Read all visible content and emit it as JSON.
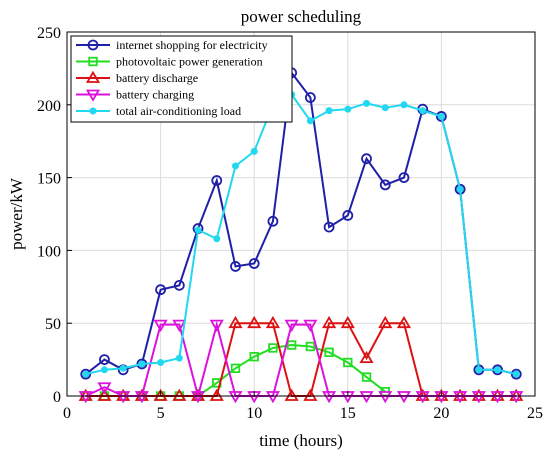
{
  "chart_data": {
    "type": "line",
    "title": "power scheduling",
    "xlabel": "time (hours)",
    "ylabel": "power/kW",
    "xlim": [
      0,
      25
    ],
    "ylim": [
      0,
      250
    ],
    "xticks": [
      0,
      5,
      10,
      15,
      20,
      25
    ],
    "yticks": [
      0,
      50,
      100,
      150,
      200,
      250
    ],
    "grid": true,
    "legend_position": "top-left",
    "x": [
      1,
      2,
      3,
      4,
      5,
      6,
      7,
      8,
      9,
      10,
      11,
      12,
      13,
      14,
      15,
      16,
      17,
      18,
      19,
      20,
      21,
      22,
      23,
      24
    ],
    "series": [
      {
        "name": "internet shopping for electricity",
        "color": "#1f1fa8",
        "marker": "circle",
        "values": [
          15,
          25,
          18,
          22,
          73,
          76,
          115,
          148,
          89,
          91,
          120,
          222,
          205,
          116,
          124,
          163,
          145,
          150,
          197,
          192,
          142,
          18,
          18,
          15
        ]
      },
      {
        "name": "photovoltaic power generation",
        "color": "#22dd22",
        "marker": "square",
        "values": [
          0,
          0,
          0,
          0,
          0,
          0,
          0,
          9,
          19,
          27,
          33,
          35,
          34,
          30,
          23,
          13,
          3,
          null,
          null,
          null,
          null,
          null,
          null,
          null
        ]
      },
      {
        "name": "battery discharge",
        "color": "#dd1111",
        "marker": "triangle-up",
        "values": [
          0,
          0,
          0,
          0,
          0,
          0,
          0,
          0,
          50,
          50,
          50,
          0,
          0,
          50,
          50,
          26,
          50,
          50,
          0,
          0,
          0,
          0,
          0,
          0
        ]
      },
      {
        "name": "battery charging",
        "color": "#dd11dd",
        "marker": "triangle-down",
        "values": [
          0,
          6,
          0,
          0,
          49,
          49,
          0,
          49,
          0,
          0,
          0,
          49,
          49,
          0,
          0,
          0,
          0,
          0,
          0,
          0,
          0,
          0,
          0,
          0
        ]
      },
      {
        "name": "total air-conditioning load",
        "color": "#22d8f0",
        "marker": "dot",
        "values": [
          15,
          18,
          19,
          22,
          23,
          26,
          114,
          108,
          158,
          168,
          200,
          207,
          189,
          196,
          197,
          201,
          198,
          200,
          196,
          192,
          142,
          18,
          18,
          15
        ]
      }
    ]
  }
}
